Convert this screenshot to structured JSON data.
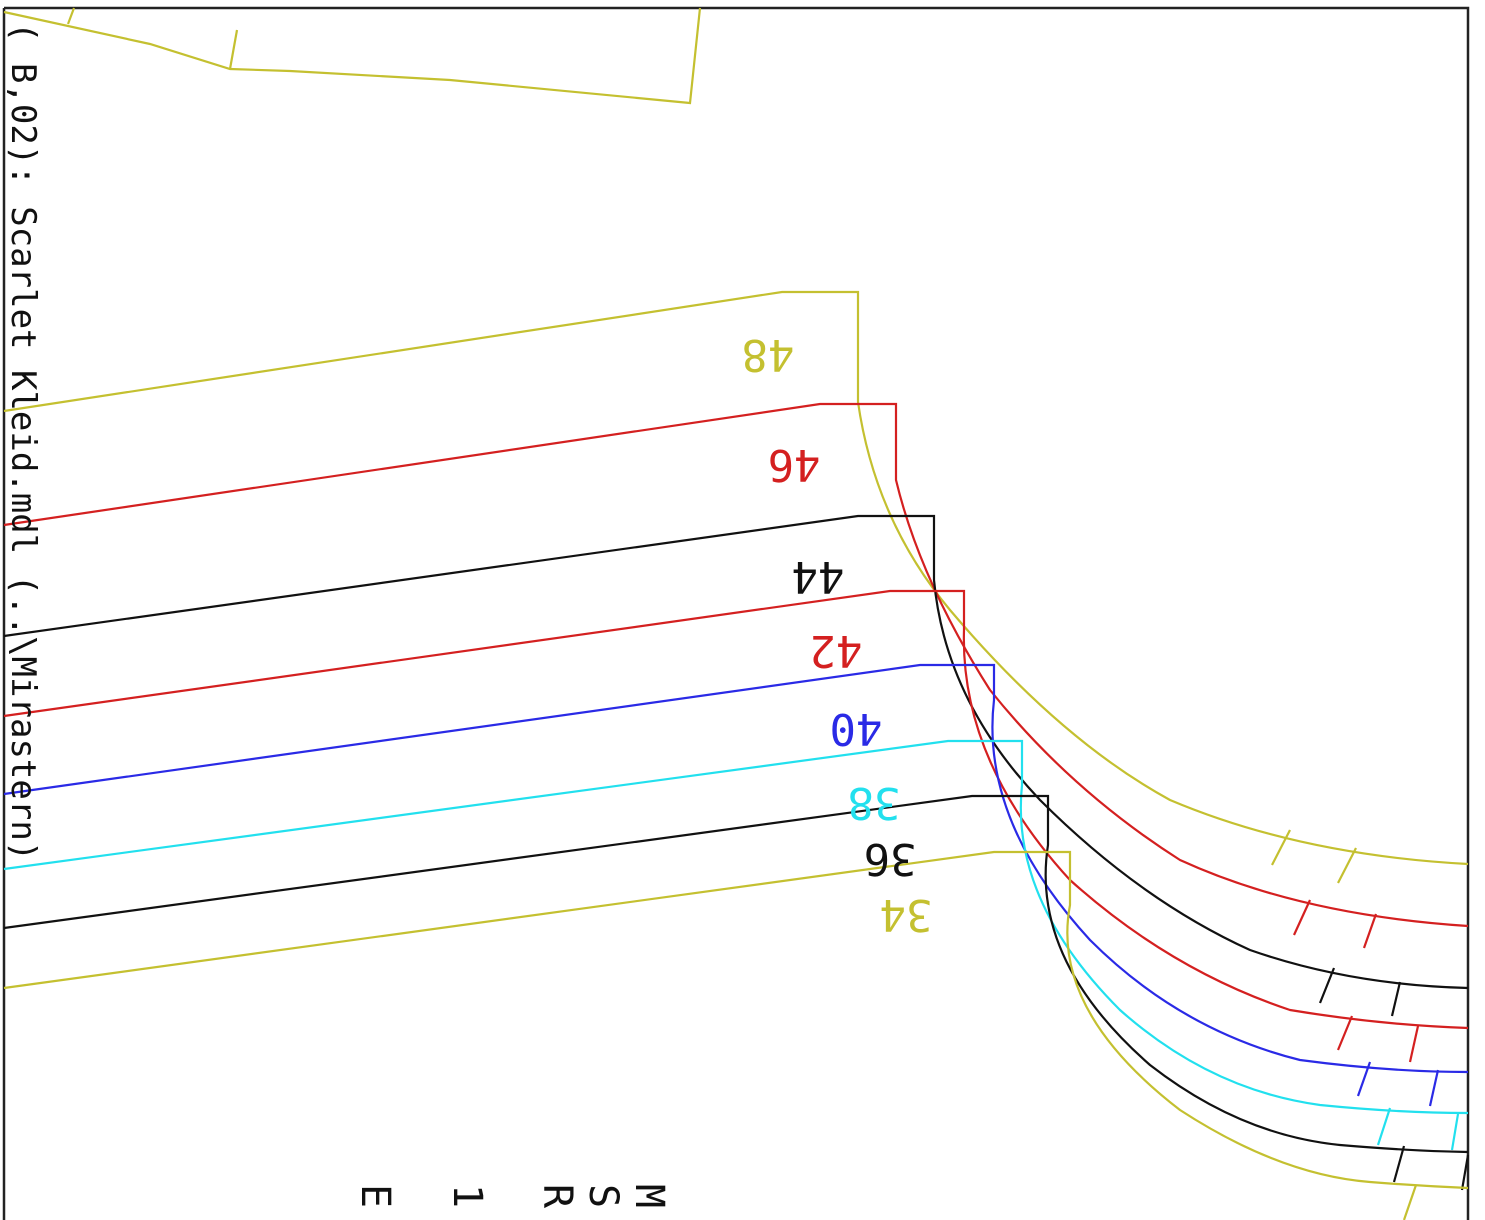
{
  "diagram": {
    "side_title": "( B,02): Scarlet Kleid.mdl (..\\Mirastern)",
    "corner_letters": [
      "M",
      "S",
      "R",
      "1",
      "E"
    ],
    "sizes": [
      {
        "label": "48",
        "color": "#c4c030"
      },
      {
        "label": "46",
        "color": "#d42020"
      },
      {
        "label": "44",
        "color": "#111111"
      },
      {
        "label": "42",
        "color": "#d42020"
      },
      {
        "label": "40",
        "color": "#2a2ae6"
      },
      {
        "label": "38",
        "color": "#22e0ee"
      },
      {
        "label": "36",
        "color": "#111111"
      },
      {
        "label": "34",
        "color": "#c4c030"
      }
    ],
    "frame_color": "#222222"
  }
}
